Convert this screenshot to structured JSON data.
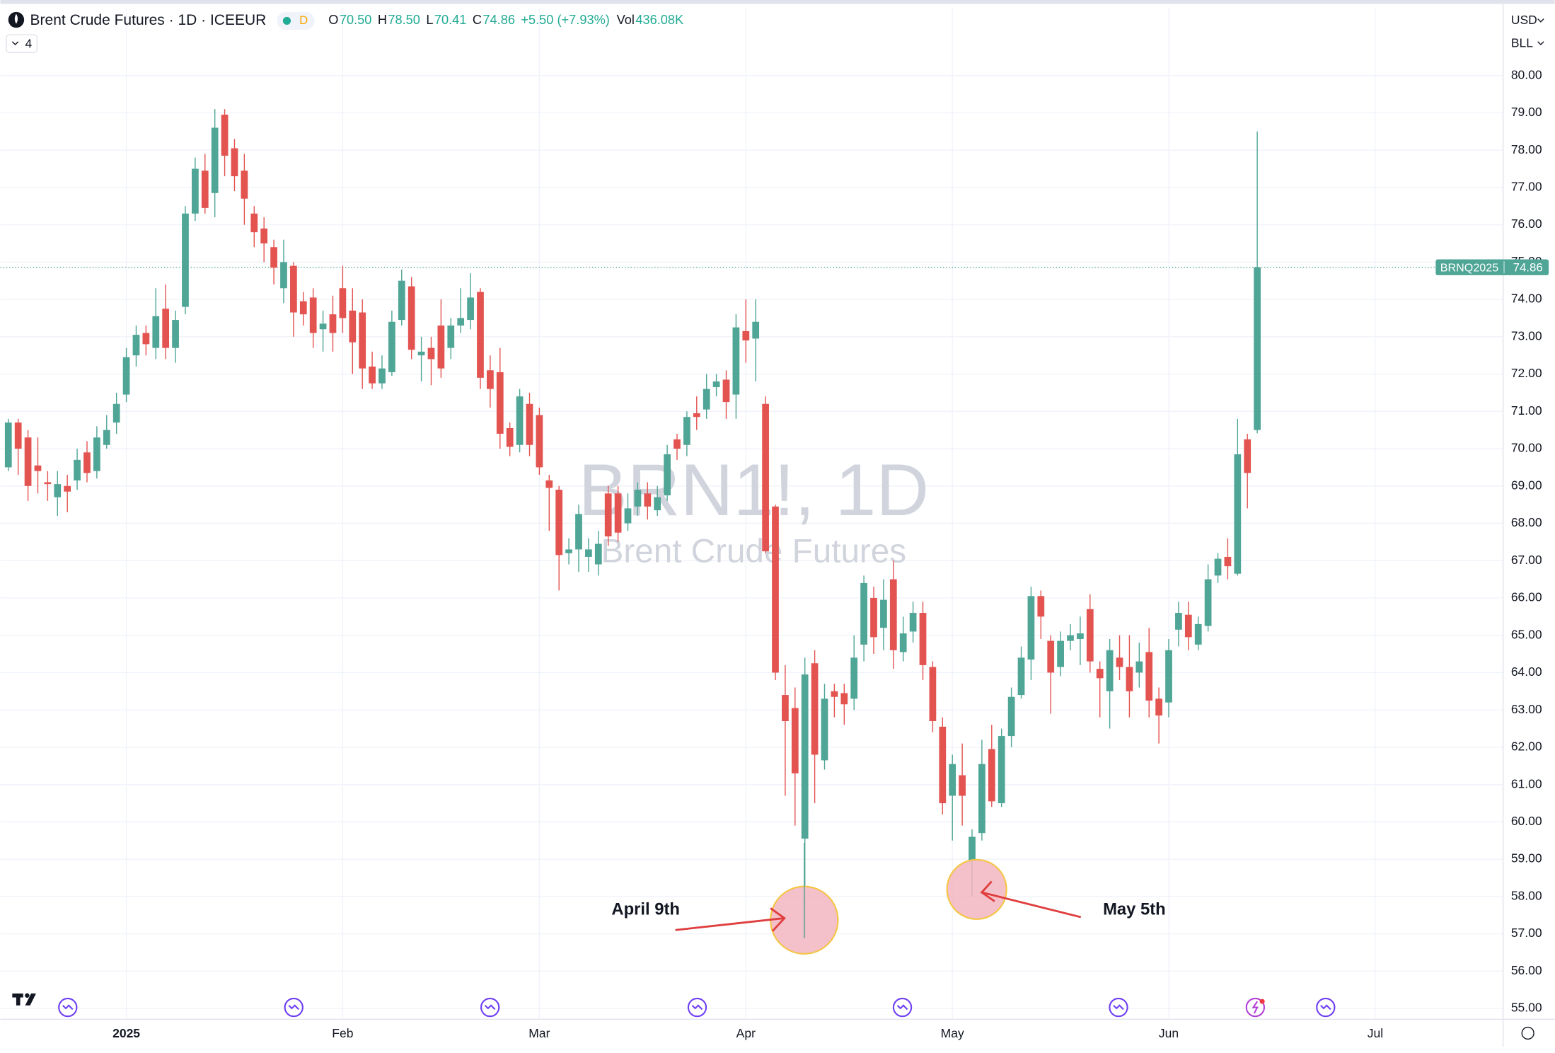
{
  "chart_data": {
    "type": "candlestick",
    "title": "Brent Crude Futures · 1D · ICEEUR",
    "interval_badge": "D",
    "legend": [
      {
        "label": "O",
        "value": "70.50"
      },
      {
        "label": "H",
        "value": "78.50"
      },
      {
        "label": "L",
        "value": "70.41"
      },
      {
        "label": "C",
        "value": "74.86"
      }
    ],
    "change": "+5.50 (+7.93%)",
    "volume": {
      "label": "Vol",
      "value": "436.08K"
    },
    "indicator_count": "4",
    "currency": "USD",
    "unit": "BLL",
    "watermark": "BRN1!, 1D",
    "watermark_subtitle": "Brent Crude Futures",
    "price_tag": {
      "symbol": "BRNQ2025"
    },
    "annotations": [
      {
        "text": "April 9th"
      },
      {
        "text": "May 5th"
      }
    ],
    "up_color": "#4fa596",
    "down_color": "#e35350",
    "grid": true,
    "open": [
      69.5,
      70.7,
      70.3,
      69.55,
      69.1,
      68.7,
      69.0,
      69.15,
      69.9,
      69.4,
      70.1,
      70.7,
      71.45,
      72.5,
      73.1,
      72.7,
      73.75,
      72.7,
      73.8,
      76.3,
      77.45,
      76.85,
      78.95,
      78.05,
      77.45,
      76.3,
      75.9,
      75.4,
      74.3,
      74.9,
      73.95,
      74.05,
      73.2,
      73.6,
      74.3,
      73.7,
      73.65,
      72.2,
      71.75,
      72.05,
      73.45,
      74.35,
      72.5,
      72.7,
      73.3,
      72.7,
      73.3,
      73.45,
      74.2,
      72.1,
      72.05,
      70.55,
      70.1,
      71.2,
      70.9,
      69.15,
      68.9,
      67.2,
      67.3,
      67.1,
      66.9,
      68.8,
      68.8,
      68.0,
      68.45,
      68.8,
      68.35,
      68.75,
      70.25,
      70.1,
      70.95,
      71.05,
      71.65,
      71.85,
      71.45,
      73.15,
      72.95,
      71.2,
      68.45,
      63.4,
      63.05,
      59.55,
      64.25,
      61.65,
      63.5,
      63.45,
      63.3,
      64.75,
      66.0,
      65.2,
      66.5,
      64.55,
      65.1,
      65.6,
      64.15,
      62.55,
      60.7,
      61.25,
      58.95,
      59.7,
      61.95,
      60.5,
      62.3,
      63.4,
      64.35,
      66.05,
      64.85,
      64.15,
      64.85,
      64.9,
      65.7,
      64.1,
      63.5,
      64.4,
      64.15,
      64.0,
      64.55,
      63.3,
      63.2,
      65.15,
      65.55,
      64.75,
      65.25,
      66.6,
      67.1,
      66.65,
      70.25,
      70.5
    ],
    "high": [
      70.8,
      70.8,
      70.5,
      70.3,
      69.4,
      69.4,
      69.3,
      70.0,
      70.2,
      70.6,
      70.9,
      71.5,
      72.7,
      73.3,
      73.3,
      74.3,
      74.4,
      73.7,
      76.5,
      77.8,
      77.9,
      79.1,
      79.1,
      78.3,
      77.9,
      76.5,
      76.2,
      75.6,
      75.6,
      75.0,
      74.2,
      74.3,
      73.7,
      74.1,
      74.9,
      74.3,
      74.0,
      72.6,
      72.5,
      73.7,
      74.8,
      74.6,
      73.0,
      73.0,
      74.0,
      73.5,
      74.3,
      74.7,
      74.3,
      72.5,
      72.7,
      70.7,
      71.6,
      71.5,
      71.1,
      69.3,
      69.0,
      67.6,
      68.5,
      67.6,
      67.8,
      69.0,
      69.0,
      68.8,
      69.1,
      69.1,
      69.0,
      70.1,
      70.4,
      71.0,
      71.4,
      72.0,
      72.0,
      72.1,
      73.6,
      74.0,
      74.0,
      71.4,
      68.5,
      64.2,
      63.6,
      64.4,
      64.6,
      63.7,
      63.7,
      63.7,
      65.0,
      66.6,
      66.3,
      66.5,
      67.0,
      65.5,
      65.9,
      65.9,
      64.3,
      62.8,
      61.8,
      62.1,
      59.8,
      62.2,
      62.6,
      62.5,
      63.6,
      64.7,
      66.3,
      66.2,
      65.0,
      65.1,
      65.3,
      65.5,
      66.1,
      64.3,
      64.9,
      65.0,
      65.0,
      64.8,
      65.2,
      63.6,
      64.9,
      65.9,
      65.9,
      65.5,
      66.9,
      67.2,
      67.6,
      70.8,
      70.4,
      78.5
    ],
    "low": [
      69.4,
      69.3,
      68.6,
      68.8,
      68.6,
      68.2,
      68.3,
      68.9,
      69.1,
      69.2,
      70.0,
      70.4,
      71.25,
      72.2,
      72.5,
      72.4,
      72.4,
      72.3,
      73.6,
      76.1,
      76.3,
      76.2,
      77.3,
      76.9,
      76.0,
      75.4,
      75.0,
      74.4,
      73.9,
      73.0,
      73.3,
      72.7,
      72.6,
      72.6,
      73.1,
      72.0,
      71.6,
      71.6,
      71.6,
      71.95,
      73.3,
      72.4,
      71.8,
      71.7,
      71.9,
      72.4,
      73.1,
      73.2,
      71.6,
      71.1,
      70.0,
      69.8,
      69.9,
      69.8,
      69.3,
      67.8,
      66.2,
      66.9,
      66.7,
      66.7,
      66.6,
      67.4,
      67.5,
      67.8,
      68.2,
      68.1,
      68.2,
      68.6,
      69.7,
      69.8,
      70.5,
      70.8,
      71.4,
      70.8,
      70.8,
      72.3,
      71.8,
      67.2,
      63.8,
      60.7,
      59.9,
      56.9,
      60.5,
      61.4,
      62.8,
      62.6,
      63.0,
      64.3,
      64.5,
      64.6,
      64.1,
      64.3,
      64.8,
      63.8,
      62.4,
      60.2,
      59.5,
      59.9,
      58.0,
      59.5,
      60.4,
      60.4,
      62.0,
      63.3,
      63.8,
      64.9,
      62.9,
      63.9,
      64.6,
      64.2,
      64.0,
      62.8,
      62.5,
      63.8,
      62.8,
      63.6,
      62.8,
      62.1,
      62.8,
      64.7,
      64.6,
      64.6,
      65.1,
      66.4,
      66.5,
      66.6,
      68.4,
      70.41
    ],
    "close": [
      70.7,
      70.0,
      69.0,
      69.4,
      69.05,
      69.05,
      68.85,
      69.7,
      69.35,
      70.3,
      70.5,
      71.2,
      72.45,
      73.05,
      72.8,
      73.55,
      72.7,
      73.45,
      76.3,
      77.5,
      76.45,
      78.6,
      77.85,
      77.3,
      76.7,
      75.8,
      75.5,
      74.85,
      75.0,
      73.65,
      73.6,
      73.1,
      73.35,
      73.1,
      73.5,
      72.85,
      72.15,
      71.75,
      72.15,
      73.4,
      74.5,
      72.65,
      72.6,
      72.4,
      72.15,
      73.3,
      73.5,
      74.05,
      71.9,
      71.6,
      70.4,
      70.05,
      71.4,
      70.1,
      69.5,
      68.95,
      67.15,
      67.3,
      68.25,
      67.3,
      67.45,
      67.65,
      67.75,
      68.4,
      68.9,
      68.45,
      68.7,
      69.85,
      70.0,
      70.85,
      70.85,
      71.6,
      71.8,
      71.25,
      73.25,
      72.9,
      73.4,
      67.25,
      64.0,
      62.7,
      61.3,
      63.95,
      61.8,
      63.3,
      63.35,
      63.15,
      64.4,
      66.4,
      64.95,
      65.95,
      64.6,
      65.05,
      65.6,
      64.2,
      62.7,
      60.5,
      61.55,
      60.7,
      59.6,
      61.55,
      60.55,
      62.3,
      63.35,
      64.4,
      66.05,
      65.5,
      64.0,
      64.85,
      65.0,
      65.05,
      64.3,
      63.85,
      64.6,
      64.15,
      63.5,
      64.3,
      63.25,
      62.85,
      64.6,
      65.6,
      64.95,
      65.3,
      66.5,
      67.05,
      66.85,
      69.85,
      69.35,
      74.86
    ],
    "xlim": [
      -0.81,
      152.0
    ],
    "xticks": [
      {
        "value": 12,
        "label": "2025"
      },
      {
        "value": 34,
        "label": "Feb"
      },
      {
        "value": 54,
        "label": "Mar"
      },
      {
        "value": 75,
        "label": "Apr"
      },
      {
        "value": 96,
        "label": "May"
      },
      {
        "value": 118,
        "label": "Jun"
      },
      {
        "value": 139,
        "label": "Jul"
      }
    ],
    "ylim": [
      54.71,
      81.81
    ],
    "yticks": [
      {
        "value": 55,
        "label": "55.00"
      },
      {
        "value": 56,
        "label": "56.00"
      },
      {
        "value": 57,
        "label": "57.00"
      },
      {
        "value": 58,
        "label": "58.00"
      },
      {
        "value": 59,
        "label": "59.00"
      },
      {
        "value": 60,
        "label": "60.00"
      },
      {
        "value": 61,
        "label": "61.00"
      },
      {
        "value": 62,
        "label": "62.00"
      },
      {
        "value": 63,
        "label": "63.00"
      },
      {
        "value": 64,
        "label": "64.00"
      },
      {
        "value": 65,
        "label": "65.00"
      },
      {
        "value": 66,
        "label": "66.00"
      },
      {
        "value": 67,
        "label": "67.00"
      },
      {
        "value": 68,
        "label": "68.00"
      },
      {
        "value": 69,
        "label": "69.00"
      },
      {
        "value": 70,
        "label": "70.00"
      },
      {
        "value": 71,
        "label": "71.00"
      },
      {
        "value": 72,
        "label": "72.00"
      },
      {
        "value": 73,
        "label": "73.00"
      },
      {
        "value": 74,
        "label": "74.00"
      },
      {
        "value": 75,
        "label": "75.00"
      },
      {
        "value": 76,
        "label": "76.00"
      },
      {
        "value": 77,
        "label": "77.00"
      },
      {
        "value": 78,
        "label": "78.00"
      },
      {
        "value": 79,
        "label": "79.00"
      },
      {
        "value": 80,
        "label": "80.00"
      }
    ]
  }
}
